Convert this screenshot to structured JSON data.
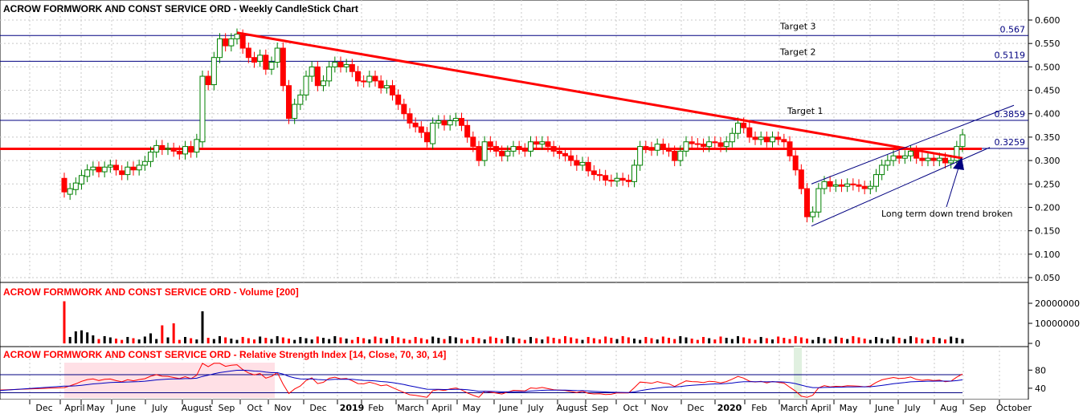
{
  "chart_data": [
    {
      "type": "candlestick",
      "title": "ACROW FORMWORK AND CONST SERVICE ORD - Weekly CandleStick Chart",
      "ylim": [
        0.02,
        0.62
      ],
      "yticks": [
        "0.600",
        "0.550",
        "0.500",
        "0.450",
        "0.400",
        "0.350",
        "0.300",
        "0.250",
        "0.200",
        "0.150",
        "0.100",
        "0.050"
      ],
      "grid": true,
      "levels": [
        {
          "value": 0.567,
          "label": "0.567",
          "tag": "Target 3"
        },
        {
          "value": 0.5119,
          "label": "0.5119",
          "tag": "Target 2"
        },
        {
          "value": 0.3859,
          "label": "0.3859",
          "tag": "Target 1"
        },
        {
          "value": 0.3259,
          "label": "0.3259",
          "tag": ""
        }
      ],
      "support": 0.325,
      "downtrend": {
        "start": [
          "2018-09-24",
          0.575
        ],
        "end": [
          "2020-08-10",
          0.305
        ]
      },
      "channel_lower": {
        "start": [
          "2020-03-30",
          0.16
        ],
        "end": [
          "2020-09-07",
          0.32
        ]
      },
      "channel_upper": {
        "start": [
          "2020-03-30",
          0.255
        ],
        "end": [
          "2020-09-07",
          0.415
        ]
      },
      "annotation": "Long term down trend broken",
      "candles_weekly": [
        [
          0.262,
          0.233
        ],
        [
          0.228,
          0.24
        ],
        [
          0.238,
          0.252
        ],
        [
          0.25,
          0.268
        ],
        [
          0.266,
          0.28
        ],
        [
          0.28,
          0.286
        ],
        [
          0.286,
          0.276
        ],
        [
          0.276,
          0.286
        ],
        [
          0.286,
          0.29
        ],
        [
          0.29,
          0.28
        ],
        [
          0.278,
          0.27
        ],
        [
          0.27,
          0.286
        ],
        [
          0.286,
          0.28
        ],
        [
          0.28,
          0.29
        ],
        [
          0.29,
          0.298
        ],
        [
          0.298,
          0.318
        ],
        [
          0.318,
          0.332
        ],
        [
          0.332,
          0.324
        ],
        [
          0.324,
          0.326
        ],
        [
          0.326,
          0.32
        ],
        [
          0.32,
          0.314
        ],
        [
          0.314,
          0.33
        ],
        [
          0.33,
          0.318
        ],
        [
          0.318,
          0.345
        ],
        [
          0.34,
          0.48
        ],
        [
          0.48,
          0.462
        ],
        [
          0.462,
          0.52
        ],
        [
          0.52,
          0.56
        ],
        [
          0.56,
          0.545
        ],
        [
          0.545,
          0.56
        ],
        [
          0.56,
          0.57
        ],
        [
          0.568,
          0.54
        ],
        [
          0.54,
          0.52
        ],
        [
          0.52,
          0.51
        ],
        [
          0.512,
          0.525
        ],
        [
          0.525,
          0.495
        ],
        [
          0.495,
          0.51
        ],
        [
          0.51,
          0.54
        ],
        [
          0.54,
          0.46
        ],
        [
          0.46,
          0.39
        ],
        [
          0.39,
          0.42
        ],
        [
          0.42,
          0.44
        ],
        [
          0.44,
          0.48
        ],
        [
          0.48,
          0.5
        ],
        [
          0.5,
          0.46
        ],
        [
          0.46,
          0.47
        ],
        [
          0.47,
          0.5
        ],
        [
          0.5,
          0.51
        ],
        [
          0.51,
          0.5
        ],
        [
          0.5,
          0.505
        ],
        [
          0.505,
          0.49
        ],
        [
          0.49,
          0.47
        ],
        [
          0.47,
          0.468
        ],
        [
          0.468,
          0.48
        ],
        [
          0.48,
          0.47
        ],
        [
          0.47,
          0.455
        ],
        [
          0.455,
          0.46
        ],
        [
          0.46,
          0.44
        ],
        [
          0.44,
          0.42
        ],
        [
          0.42,
          0.4
        ],
        [
          0.4,
          0.38
        ],
        [
          0.38,
          0.372
        ],
        [
          0.372,
          0.36
        ],
        [
          0.36,
          0.34
        ],
        [
          0.336,
          0.38
        ],
        [
          0.38,
          0.385
        ],
        [
          0.385,
          0.376
        ],
        [
          0.376,
          0.385
        ],
        [
          0.385,
          0.39
        ],
        [
          0.39,
          0.375
        ],
        [
          0.375,
          0.35
        ],
        [
          0.35,
          0.33
        ],
        [
          0.33,
          0.3
        ],
        [
          0.3,
          0.34
        ],
        [
          0.34,
          0.33
        ],
        [
          0.33,
          0.32
        ],
        [
          0.32,
          0.31
        ],
        [
          0.31,
          0.32
        ],
        [
          0.32,
          0.33
        ],
        [
          0.33,
          0.325
        ],
        [
          0.325,
          0.32
        ],
        [
          0.32,
          0.34
        ],
        [
          0.34,
          0.335
        ],
        [
          0.335,
          0.34
        ],
        [
          0.34,
          0.33
        ],
        [
          0.33,
          0.32
        ],
        [
          0.32,
          0.315
        ],
        [
          0.315,
          0.31
        ],
        [
          0.31,
          0.3
        ],
        [
          0.3,
          0.29
        ],
        [
          0.29,
          0.296
        ],
        [
          0.296,
          0.278
        ],
        [
          0.278,
          0.27
        ],
        [
          0.27,
          0.268
        ],
        [
          0.268,
          0.258
        ],
        [
          0.258,
          0.256
        ],
        [
          0.256,
          0.262
        ],
        [
          0.262,
          0.258
        ],
        [
          0.258,
          0.255
        ],
        [
          0.255,
          0.29
        ],
        [
          0.29,
          0.33
        ],
        [
          0.33,
          0.328
        ],
        [
          0.328,
          0.322
        ],
        [
          0.322,
          0.335
        ],
        [
          0.335,
          0.325
        ],
        [
          0.325,
          0.32
        ],
        [
          0.32,
          0.3
        ],
        [
          0.3,
          0.32
        ],
        [
          0.32,
          0.34
        ],
        [
          0.34,
          0.336
        ],
        [
          0.336,
          0.335
        ],
        [
          0.335,
          0.33
        ],
        [
          0.33,
          0.34
        ],
        [
          0.34,
          0.338
        ],
        [
          0.338,
          0.33
        ],
        [
          0.33,
          0.34
        ],
        [
          0.34,
          0.358
        ],
        [
          0.358,
          0.38
        ],
        [
          0.38,
          0.37
        ],
        [
          0.37,
          0.35
        ],
        [
          0.35,
          0.345
        ],
        [
          0.345,
          0.35
        ],
        [
          0.35,
          0.34
        ],
        [
          0.34,
          0.35
        ],
        [
          0.35,
          0.345
        ],
        [
          0.345,
          0.34
        ],
        [
          0.34,
          0.31
        ],
        [
          0.31,
          0.28
        ],
        [
          0.28,
          0.24
        ],
        [
          0.24,
          0.18
        ],
        [
          0.18,
          0.19
        ],
        [
          0.19,
          0.24
        ],
        [
          0.24,
          0.255
        ],
        [
          0.255,
          0.245
        ],
        [
          0.245,
          0.248
        ],
        [
          0.248,
          0.245
        ],
        [
          0.245,
          0.25
        ],
        [
          0.25,
          0.248
        ],
        [
          0.248,
          0.245
        ],
        [
          0.245,
          0.24
        ],
        [
          0.24,
          0.245
        ],
        [
          0.245,
          0.27
        ],
        [
          0.27,
          0.29
        ],
        [
          0.29,
          0.3
        ],
        [
          0.3,
          0.31
        ],
        [
          0.31,
          0.305
        ],
        [
          0.305,
          0.31
        ],
        [
          0.31,
          0.32
        ],
        [
          0.32,
          0.305
        ],
        [
          0.305,
          0.3
        ],
        [
          0.3,
          0.305
        ],
        [
          0.305,
          0.3
        ],
        [
          0.3,
          0.305
        ],
        [
          0.305,
          0.295
        ],
        [
          0.295,
          0.3
        ],
        [
          0.3,
          0.33
        ],
        [
          0.33,
          0.355
        ]
      ],
      "series_color_up": "#ffffff",
      "series_color_down": "#ff0000"
    },
    {
      "type": "bar",
      "title": "ACROW FORMWORK AND CONST SERVICE ORD - Volume [200]",
      "ylim": [
        0,
        22000000
      ],
      "yticks": [
        "20000000",
        "10000000",
        "0"
      ],
      "spikes": [
        21000000,
        6000000,
        6500000,
        5500000,
        4000000,
        3000000,
        5000000,
        9000000,
        10000000,
        16000000
      ],
      "typical_value": 2500000
    },
    {
      "type": "line",
      "title": "ACROW FORMWORK AND CONST SERVICE ORD - Relative Strength Index [14, Close, 70, 30, 14]",
      "ylim": [
        15,
        100
      ],
      "yticks": [
        "80",
        "40"
      ],
      "overbought": 70,
      "oversold": 30,
      "overbought_shade": "#ffe0e6",
      "oversold_shade": "#e0f0e0"
    }
  ],
  "x_axis": {
    "labels": [
      "Dec",
      "April",
      "May",
      "June",
      "July",
      "August",
      "Sep",
      "Oct",
      "Nov",
      "Dec",
      "2019",
      "Feb",
      "March",
      "April",
      "May",
      "June",
      "July",
      "August",
      "Sep",
      "Oct",
      "Nov",
      "Dec",
      "2020",
      "Feb",
      "March",
      "April",
      "May",
      "June",
      "July",
      "Aug",
      "Sep",
      "October"
    ],
    "bold": [
      "2019",
      "2020"
    ]
  },
  "colors": {
    "level_line": "#000080",
    "trend": "#ff0000",
    "support": "#ff0000",
    "title_main": "#000000",
    "title_sub": "#ff0000",
    "grid": "#c8c8c8"
  }
}
